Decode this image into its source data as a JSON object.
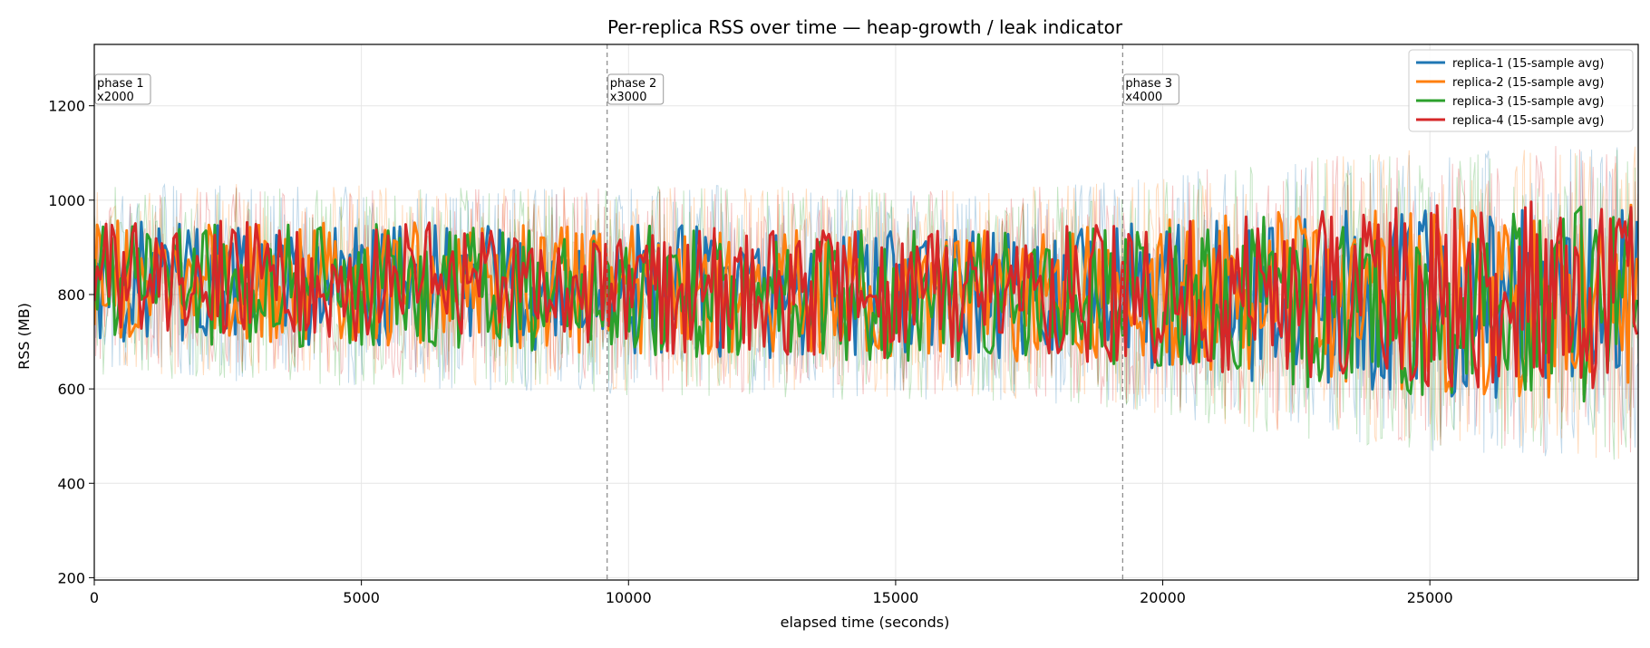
{
  "chart_data": {
    "type": "line",
    "title": "Per-replica RSS over time — heap-growth / leak indicator",
    "xlabel": "elapsed time (seconds)",
    "ylabel": "RSS (MB)",
    "xlim": [
      0,
      28900
    ],
    "ylim": [
      195,
      1330
    ],
    "xticks": [
      0,
      5000,
      10000,
      15000,
      20000,
      25000
    ],
    "yticks": [
      200,
      400,
      600,
      800,
      1000,
      1200
    ],
    "grid": true,
    "legend_position": "top-right",
    "phases": [
      {
        "x": 0,
        "label": "phase 1",
        "sublabel": "x2000"
      },
      {
        "x": 9600,
        "label": "phase 2",
        "sublabel": "x3000"
      },
      {
        "x": 19250,
        "label": "phase 3",
        "sublabel": "x4000"
      }
    ],
    "series": [
      {
        "name": "replica-1 (15-sample avg)",
        "color": "#1f77b4",
        "x": [
          0,
          2000,
          4000,
          6000,
          8000,
          9600,
          11000,
          13000,
          15000,
          17000,
          19250,
          21000,
          23000,
          25000,
          27000,
          28900
        ],
        "mean": [
          830,
          825,
          820,
          815,
          812,
          810,
          808,
          805,
          800,
          800,
          800,
          795,
          790,
          785,
          780,
          780
        ],
        "spread": [
          130,
          130,
          130,
          135,
          135,
          140,
          140,
          140,
          140,
          140,
          150,
          170,
          190,
          200,
          205,
          210
        ]
      },
      {
        "name": "replica-2 (15-sample avg)",
        "color": "#ff7f0e",
        "x": [
          0,
          2000,
          4000,
          6000,
          8000,
          9600,
          11000,
          13000,
          15000,
          17000,
          19250,
          21000,
          23000,
          25000,
          27000,
          28900
        ],
        "mean": [
          835,
          830,
          825,
          820,
          815,
          812,
          810,
          806,
          803,
          802,
          800,
          798,
          795,
          790,
          788,
          785
        ],
        "spread": [
          125,
          128,
          130,
          132,
          135,
          138,
          140,
          140,
          140,
          142,
          150,
          170,
          185,
          200,
          205,
          210
        ]
      },
      {
        "name": "replica-3 (15-sample avg)",
        "color": "#2ca02c",
        "x": [
          0,
          2000,
          4000,
          6000,
          8000,
          9600,
          11000,
          13000,
          15000,
          17000,
          19250,
          21000,
          23000,
          25000,
          27000,
          28900
        ],
        "mean": [
          828,
          822,
          818,
          815,
          810,
          808,
          806,
          803,
          800,
          798,
          797,
          795,
          790,
          786,
          782,
          780
        ],
        "spread": [
          125,
          128,
          130,
          134,
          136,
          140,
          140,
          140,
          142,
          142,
          150,
          172,
          190,
          200,
          205,
          210
        ]
      },
      {
        "name": "replica-4 (15-sample avg)",
        "color": "#d62728",
        "x": [
          0,
          2000,
          4000,
          6000,
          8000,
          9600,
          11000,
          13000,
          15000,
          17000,
          19250,
          21000,
          23000,
          25000,
          27000,
          28900
        ],
        "mean": [
          840,
          835,
          830,
          825,
          820,
          815,
          812,
          808,
          805,
          803,
          802,
          800,
          798,
          795,
          792,
          790
        ],
        "spread": [
          120,
          122,
          125,
          128,
          130,
          135,
          138,
          138,
          140,
          140,
          148,
          168,
          185,
          198,
          205,
          210
        ]
      }
    ]
  }
}
